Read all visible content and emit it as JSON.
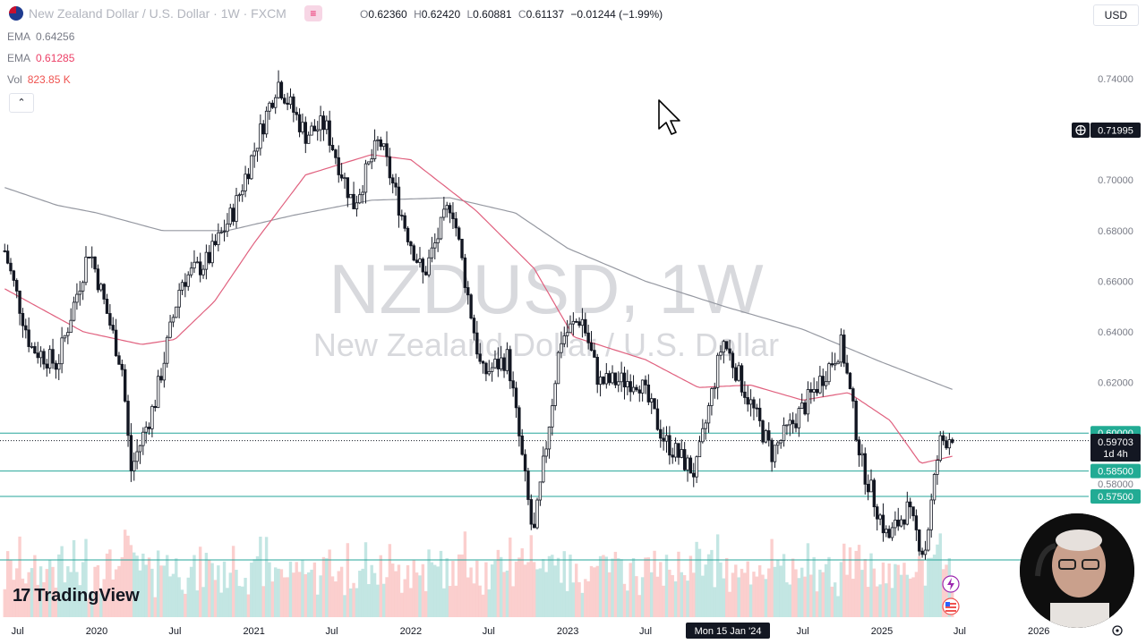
{
  "header": {
    "symbol_title": "New Zealand Dollar / U.S. Dollar · 1W · FXCM",
    "ohlc": {
      "o_label": "O",
      "o": "0.62360",
      "h_label": "H",
      "h": "0.62420",
      "l_label": "L",
      "l": "0.60881",
      "c_label": "C",
      "c": "0.61137",
      "change": "−0.01244 (−1.99%)"
    },
    "currency": "USD"
  },
  "indicators": [
    {
      "name": "EMA",
      "value": "0.64256",
      "color": "#787b86"
    },
    {
      "name": "EMA",
      "value": "0.61285",
      "color": "#ec4067"
    },
    {
      "name": "Vol",
      "value": "823.85 K",
      "color": "#ef5350"
    }
  ],
  "collapse_icon": "chevron-up-icon",
  "watermark": {
    "line1": "NZDUSD, 1W",
    "line2": "New Zealand Dollar / U.S. Dollar"
  },
  "price_axis": {
    "labels": [
      "0.74000",
      "0.70000",
      "0.68000",
      "0.66000",
      "0.64000",
      "0.62000",
      "0.58000"
    ],
    "crosshair_price": "0.71995",
    "current_price": "0.59703",
    "countdown": "1d 4h",
    "levels": [
      {
        "price": 0.6,
        "label": "0.60000"
      },
      {
        "price": 0.585,
        "label": "0.58500"
      },
      {
        "price": 0.575,
        "label": "0.57500"
      }
    ]
  },
  "time_axis": {
    "labels": [
      "Jul",
      "2020",
      "Jul",
      "2021",
      "Jul",
      "2022",
      "Jul",
      "2023",
      "Jul",
      "Jul",
      "2025",
      "Jul",
      "2026"
    ],
    "crosshair_date": "Mon 15 Jan '24"
  },
  "branding": {
    "logo_text": "TradingView",
    "logo_icon": "tradingview-logo-icon"
  },
  "colors": {
    "candle": "#131722",
    "ema_slow": "#9598a1",
    "ema_fast": "#e0607e",
    "level_line": "#26a69a",
    "level_label_bg": "#22ab94",
    "vol_up": "#26a69a",
    "vol_down": "#ef5350"
  },
  "chart_data": {
    "type": "candlestick",
    "symbol": "NZDUSD",
    "interval": "1W",
    "ylim": [
      0.578,
      0.752
    ],
    "anchors": [
      [
        "2019-06-01",
        0.672,
        0.642
      ],
      [
        "2019-08-01",
        0.634,
        0.632
      ],
      [
        "2019-10-01",
        0.627,
        0.637
      ],
      [
        "2019-12-15",
        0.673,
        0.642
      ],
      [
        "2020-03-01",
        0.625,
        0.643
      ],
      [
        "2020-03-20",
        0.585,
        0.642
      ],
      [
        "2020-05-15",
        0.612,
        0.638
      ],
      [
        "2020-07-15",
        0.66,
        0.637
      ],
      [
        "2020-09-15",
        0.668,
        0.637
      ],
      [
        "2020-11-15",
        0.688,
        0.639
      ],
      [
        "2021-02-25",
        0.739,
        0.649
      ],
      [
        "2021-05-01",
        0.718,
        0.658
      ],
      [
        "2021-06-15",
        0.722,
        0.661
      ],
      [
        "2021-08-20",
        0.69,
        0.664
      ],
      [
        "2021-10-20",
        0.716,
        0.67
      ],
      [
        "2021-12-20",
        0.681,
        0.672
      ],
      [
        "2022-01-30",
        0.662,
        0.673
      ],
      [
        "2022-04-05",
        0.692,
        0.673
      ],
      [
        "2022-06-15",
        0.623,
        0.672
      ],
      [
        "2022-08-15",
        0.63,
        0.669
      ],
      [
        "2022-10-13",
        0.558,
        0.664
      ],
      [
        "2022-12-15",
        0.637,
        0.66
      ],
      [
        "2023-02-02",
        0.646,
        0.657
      ],
      [
        "2023-03-15",
        0.62,
        0.655
      ],
      [
        "2023-06-15",
        0.621,
        0.65
      ],
      [
        "2023-08-15",
        0.597,
        0.647
      ],
      [
        "2023-10-25",
        0.584,
        0.643
      ],
      [
        "2023-12-28",
        0.637,
        0.641
      ],
      [
        "2024-04-20",
        0.592,
        0.638
      ],
      [
        "2024-07-10",
        0.612,
        0.636
      ],
      [
        "2024-09-30",
        0.635,
        0.634
      ],
      [
        "2024-11-15",
        0.588,
        0.631
      ],
      [
        "2025-01-15",
        0.558,
        0.627
      ],
      [
        "2025-02-28",
        0.57,
        0.625
      ],
      [
        "2025-04-10",
        0.552,
        0.623
      ],
      [
        "2025-05-15",
        0.596,
        0.621
      ],
      [
        "2025-06-18",
        0.6,
        0.62
      ]
    ],
    "ema_fast": [
      [
        "2019-06-01",
        0.657
      ],
      [
        "2019-12-01",
        0.64
      ],
      [
        "2020-04-15",
        0.635
      ],
      [
        "2020-07-01",
        0.637
      ],
      [
        "2020-10-01",
        0.652
      ],
      [
        "2021-01-01",
        0.675
      ],
      [
        "2021-05-01",
        0.702
      ],
      [
        "2021-10-01",
        0.71
      ],
      [
        "2022-01-01",
        0.708
      ],
      [
        "2022-06-01",
        0.688
      ],
      [
        "2022-10-15",
        0.665
      ],
      [
        "2023-01-15",
        0.638
      ],
      [
        "2023-07-01",
        0.629
      ],
      [
        "2023-11-01",
        0.618
      ],
      [
        "2024-03-01",
        0.619
      ],
      [
        "2024-07-01",
        0.613
      ],
      [
        "2024-10-15",
        0.616
      ],
      [
        "2025-01-20",
        0.605
      ],
      [
        "2025-04-01",
        0.588
      ],
      [
        "2025-06-18",
        0.591
      ]
    ],
    "ema_slow": [
      [
        "2019-06-01",
        0.697
      ],
      [
        "2019-10-01",
        0.69
      ],
      [
        "2020-01-01",
        0.687
      ],
      [
        "2020-06-01",
        0.68
      ],
      [
        "2020-11-01",
        0.68
      ],
      [
        "2021-04-01",
        0.686
      ],
      [
        "2021-10-01",
        0.692
      ],
      [
        "2022-04-01",
        0.693
      ],
      [
        "2022-09-01",
        0.687
      ],
      [
        "2023-01-01",
        0.673
      ],
      [
        "2023-07-01",
        0.66
      ],
      [
        "2024-01-01",
        0.65
      ],
      [
        "2024-07-01",
        0.641
      ],
      [
        "2025-01-01",
        0.628
      ],
      [
        "2025-06-18",
        0.617
      ]
    ]
  }
}
